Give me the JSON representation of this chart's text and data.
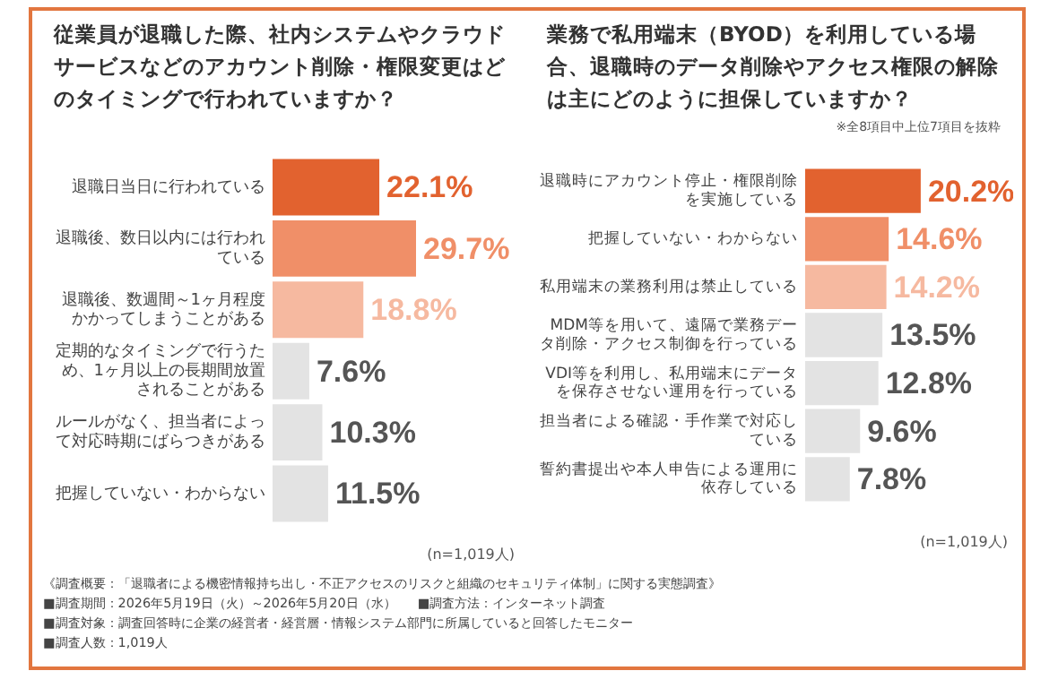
{
  "chart_data": [
    {
      "type": "bar",
      "orientation": "horizontal",
      "title": "従業員が退職した際、社内システムやクラウドサービスなどのアカウント削除・権限変更はどのタイミングで行われていますか？",
      "categories": [
        "退職日当日に行われている",
        "退職後、数日以内には行われている",
        "退職後、数週間～1ヶ月程度かかってしまうことがある",
        "定期的なタイミングで行うため、1ヶ月以上の長期間放置されることがある",
        "ルールがなく、担当者によって対応時期にばらつきがある",
        "把握していない・わからない"
      ],
      "values": [
        22.1,
        29.7,
        18.8,
        7.6,
        10.3,
        11.5
      ],
      "colors": [
        "#e2622f",
        "#f08f68",
        "#f6b9a0",
        "#e3e3e3",
        "#e3e3e3",
        "#e3e3e3"
      ],
      "value_labels": [
        "22.1%",
        "29.7%",
        "18.8%",
        "7.6%",
        "10.3%",
        "11.5%"
      ],
      "legend": false,
      "annotations": [
        "(n=1,019人)",
        "《調査概要：「退職者による機密情報持ち出し・不正アクセスのリスクと組織のセキュリティ体制」に関する実態調査》",
        "■調査期間：2026年5月19日（火）～2026年5月20日（水）",
        "■調査方法：インターネット調査",
        "■調査対象：調査回答時に企業の経営者・経営層・情報システム部門に所属していると回答したモニター",
        "■調査人数：1,019人"
      ]
    },
    {
      "type": "bar",
      "orientation": "horizontal",
      "title": "業務で私用端末（BYOD）を利用している場合、退職時のデータ削除やアクセス権限の解除は主にどのように担保していますか？",
      "categories": [
        "退職時にアカウント停止・権限削除を実施している",
        "把握していない・わからない",
        "私用端末の業務利用は禁止している",
        "MDM等を用いて、遠隔で業務データ削除・アクセス制御を行っている",
        "VDI等を利用し、私用端末にデータを保存させない運用を行っている",
        "担当者による確認・手作業で対応している",
        "誓約書提出や本人申告による運用に依存している"
      ],
      "values": [
        20.2,
        14.6,
        14.2,
        13.5,
        12.8,
        9.6,
        7.8
      ],
      "colors": [
        "#e2622f",
        "#f08f68",
        "#f6b9a0",
        "#e3e3e3",
        "#e3e3e3",
        "#e3e3e3",
        "#e3e3e3"
      ],
      "value_labels": [
        "20.2%",
        "14.6%",
        "14.2%",
        "13.5%",
        "12.8%",
        "9.6%",
        "7.8%"
      ],
      "legend": false,
      "annotations": [
        "※全8項目中上位7項目を抜粋",
        "(n=1,019人)"
      ]
    }
  ]
}
